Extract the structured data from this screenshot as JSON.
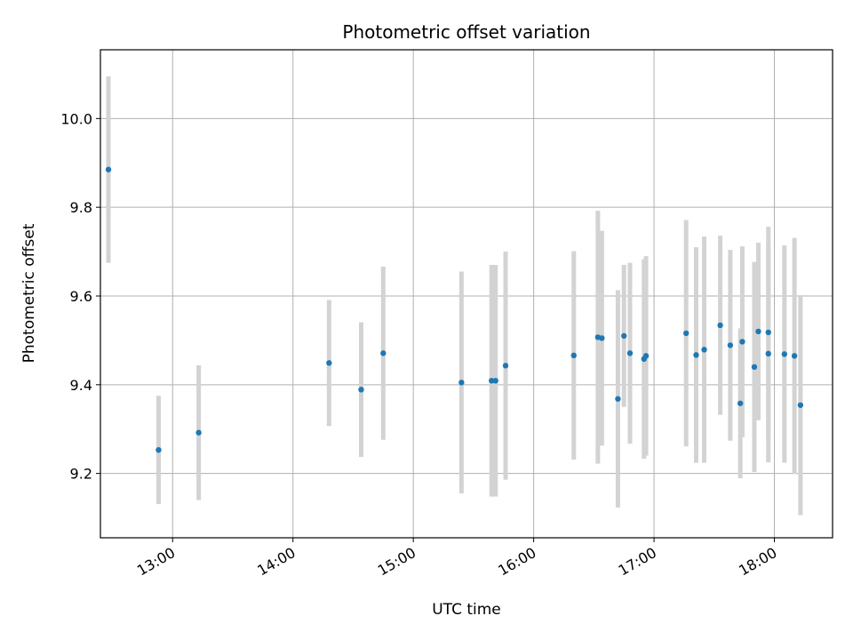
{
  "chart_data": {
    "type": "scatter",
    "title": "Photometric offset variation",
    "xlabel": "UTC time",
    "ylabel": "Photometric offset",
    "x_ticks": [
      "13:00",
      "14:00",
      "15:00",
      "16:00",
      "17:00",
      "18:00"
    ],
    "y_ticks": [
      9.2,
      9.4,
      9.6,
      9.8,
      10.0
    ],
    "xlim": [
      "12:24",
      "18:29"
    ],
    "ylim": [
      9.055,
      10.155
    ],
    "grid": true,
    "colors": {
      "point": "#1f77b4",
      "errorbar": "#d3d3d3",
      "grid": "#b0b0b0",
      "axes": "#000000"
    },
    "points": [
      {
        "x": "12:28",
        "y": 9.885,
        "err": 0.21
      },
      {
        "x": "12:53",
        "y": 9.253,
        "err": 0.122
      },
      {
        "x": "13:13",
        "y": 9.292,
        "err": 0.152
      },
      {
        "x": "14:18",
        "y": 9.449,
        "err": 0.142
      },
      {
        "x": "14:34",
        "y": 9.389,
        "err": 0.152
      },
      {
        "x": "14:45",
        "y": 9.471,
        "err": 0.195
      },
      {
        "x": "15:24",
        "y": 9.405,
        "err": 0.25
      },
      {
        "x": "15:39",
        "y": 9.409,
        "err": 0.261
      },
      {
        "x": "15:41",
        "y": 9.409,
        "err": 0.261
      },
      {
        "x": "15:46",
        "y": 9.443,
        "err": 0.257
      },
      {
        "x": "16:20",
        "y": 9.466,
        "err": 0.235
      },
      {
        "x": "16:32",
        "y": 9.507,
        "err": 0.285
      },
      {
        "x": "16:34",
        "y": 9.505,
        "err": 0.242
      },
      {
        "x": "16:42",
        "y": 9.368,
        "err": 0.245
      },
      {
        "x": "16:45",
        "y": 9.51,
        "err": 0.16
      },
      {
        "x": "16:48",
        "y": 9.471,
        "err": 0.204
      },
      {
        "x": "16:55",
        "y": 9.458,
        "err": 0.225
      },
      {
        "x": "16:56",
        "y": 9.465,
        "err": 0.225
      },
      {
        "x": "17:16",
        "y": 9.516,
        "err": 0.255
      },
      {
        "x": "17:21",
        "y": 9.467,
        "err": 0.243
      },
      {
        "x": "17:25",
        "y": 9.479,
        "err": 0.255
      },
      {
        "x": "17:33",
        "y": 9.534,
        "err": 0.202
      },
      {
        "x": "17:38",
        "y": 9.489,
        "err": 0.215
      },
      {
        "x": "17:43",
        "y": 9.358,
        "err": 0.169
      },
      {
        "x": "17:44",
        "y": 9.497,
        "err": 0.215
      },
      {
        "x": "17:50",
        "y": 9.44,
        "err": 0.237
      },
      {
        "x": "17:52",
        "y": 9.52,
        "err": 0.2
      },
      {
        "x": "17:57",
        "y": 9.518,
        "err": 0.238
      },
      {
        "x": "17:57",
        "y": 9.47,
        "err": 0.245
      },
      {
        "x": "18:05",
        "y": 9.469,
        "err": 0.245
      },
      {
        "x": "18:10",
        "y": 9.465,
        "err": 0.266
      },
      {
        "x": "18:13",
        "y": 9.354,
        "err": 0.248
      }
    ]
  }
}
